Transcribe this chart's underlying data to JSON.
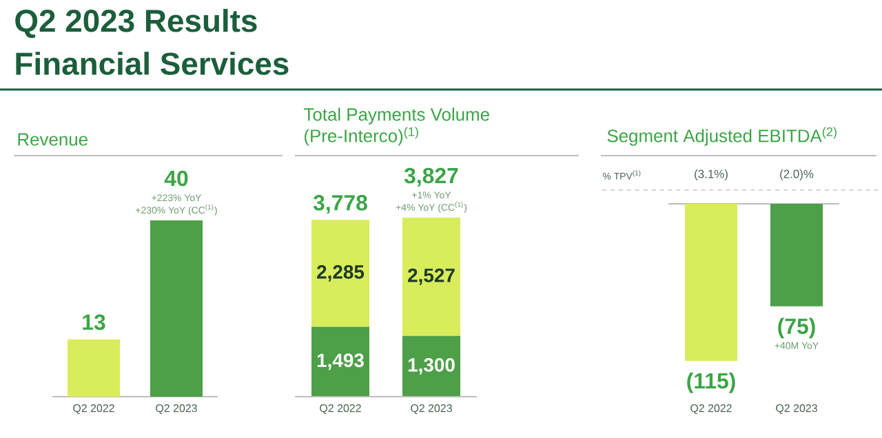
{
  "chart_data": [
    {
      "type": "other",
      "title": "Q2 2023 Results",
      "subtitle": "Financial Services"
    },
    {
      "type": "bar",
      "title": "Revenue",
      "categories": [
        "Q2 2022",
        "Q2 2023"
      ],
      "values": [
        13,
        40
      ],
      "colors": [
        "#d9ec5b",
        "#4d9f48"
      ],
      "data_labels": true,
      "annotations": [
        {
          "text": "+223% YoY",
          "x": "Q2 2023",
          "y": 40
        },
        {
          "text": "+230% YoY (CC$^{(1)}$)",
          "x": "Q2 2023",
          "y": 40
        }
      ]
    },
    {
      "type": "bar",
      "title": "Total Payments Volume (Pre-Interco)$^{(1)}$",
      "categories": [
        "Q2 2022",
        "Q2 2023"
      ],
      "stacked": true,
      "series": [
        {
          "color": "#4d9f48",
          "values": [
            1493,
            1300
          ],
          "value_labels": [
            "1,493",
            "1,300"
          ]
        },
        {
          "color": "#d9ec5b",
          "values": [
            2285,
            2527
          ],
          "value_labels": [
            "2,285",
            "2,527"
          ]
        }
      ],
      "totals": [
        "3,778",
        "3,827"
      ],
      "annotations": [
        {
          "text": "+1% YoY",
          "x": "Q2 2023",
          "y": 3827
        },
        {
          "text": "+4% YoY (CC$^{(1)}$)",
          "x": "Q2 2023",
          "y": 3827
        }
      ]
    },
    {
      "type": "bar",
      "title": "Segment Adjusted EBITDA$^{(2)}$",
      "categories": [
        "Q2 2022",
        "Q2 2023"
      ],
      "values": [
        -115,
        -75
      ],
      "colors": [
        "#d9ec5b",
        "#4d9f48"
      ],
      "value_labels": [
        "(115)",
        "(75)"
      ],
      "annotations": [
        "% TPV$^{(1)}$",
        "(3.1%)",
        "(2.0)%",
        "+40M YoY"
      ]
    }
  ]
}
